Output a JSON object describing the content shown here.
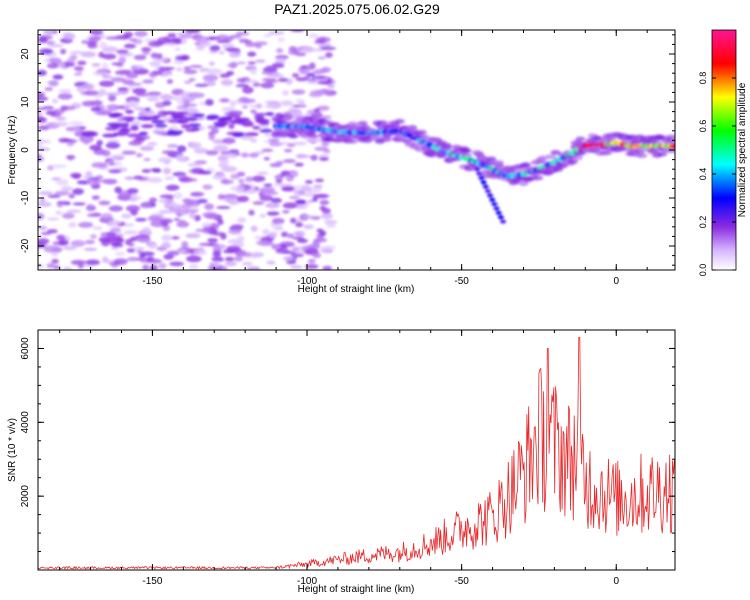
{
  "figure_title": "PAZ1.2025.075.06.02.G29",
  "chart_data": [
    {
      "type": "heatmap",
      "xlabel": "Height of straight line (km)",
      "ylabel": "Frequency (Hz)",
      "xlim": [
        -187,
        19
      ],
      "ylim": [
        -25,
        25
      ],
      "xticks": [
        -150,
        -100,
        -50,
        0
      ],
      "yticks": [
        -20,
        -10,
        0,
        10,
        20
      ],
      "colorbar": {
        "label": "Normalized spectral amplitude",
        "range": [
          0,
          1
        ],
        "ticks": [
          "0.0",
          "0.2",
          "0.4",
          "0.6",
          "0.8"
        ],
        "colors": [
          "#ffffff",
          "#8a2be2",
          "#0000ff",
          "#00ffff",
          "#00ff00",
          "#ffff00",
          "#ff0000",
          "#ff1493"
        ]
      },
      "ridge": {
        "x": [
          -110,
          -100,
          -90,
          -80,
          -70,
          -65,
          -60,
          -55,
          -50,
          -45,
          -40,
          -35,
          -30,
          -25,
          -20,
          -15,
          -10,
          -5,
          0,
          5,
          10,
          15,
          19
        ],
        "y": [
          5,
          4.8,
          3.8,
          3.5,
          4,
          2.5,
          1,
          -0.5,
          -1.5,
          -2.5,
          -4,
          -5.5,
          -5,
          -4,
          -2.5,
          -1,
          1,
          1,
          1.5,
          0.8,
          0.8,
          0.8,
          0.8
        ]
      },
      "noise_region": [
        -187,
        -100
      ]
    },
    {
      "type": "line",
      "xlabel": "Height of straight line (km)",
      "ylabel": "SNR (10 * v/v)",
      "xlim": [
        -187,
        19
      ],
      "ylim": [
        0,
        6500
      ],
      "xticks": [
        -150,
        -100,
        -50,
        0
      ],
      "yticks": [
        2000,
        4000,
        6000
      ],
      "color": "#e8282a",
      "envelope": {
        "x": [
          -187,
          -150,
          -110,
          -100,
          -90,
          -80,
          -70,
          -60,
          -50,
          -45,
          -40,
          -35,
          -30,
          -25,
          -20,
          -15,
          -12,
          -10,
          -5,
          0,
          10,
          19
        ],
        "y": [
          60,
          60,
          80,
          200,
          350,
          500,
          600,
          900,
          1400,
          1600,
          1800,
          2500,
          3300,
          4500,
          4200,
          3700,
          4000,
          3000,
          2700,
          2400,
          2600,
          2800
        ]
      },
      "spikes": [
        {
          "x": -22,
          "y": 6000
        },
        {
          "x": -12,
          "y": 6300
        }
      ]
    }
  ]
}
